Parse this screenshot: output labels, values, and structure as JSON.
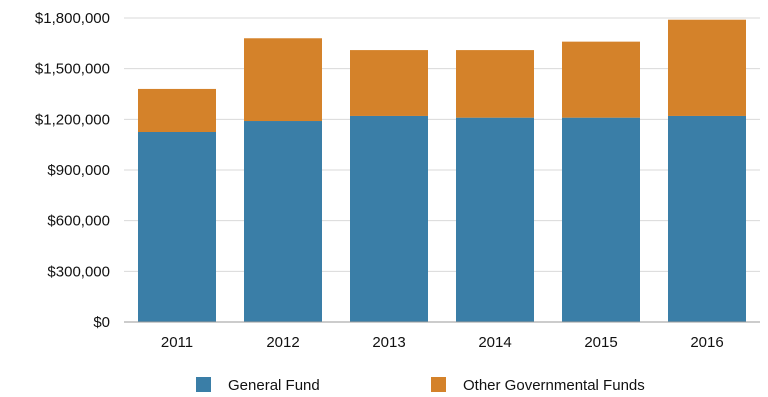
{
  "chart_data": {
    "type": "bar",
    "stacked": true,
    "categories": [
      "2011",
      "2012",
      "2013",
      "2014",
      "2015",
      "2016"
    ],
    "series": [
      {
        "name": "General Fund",
        "color": "#3a7ea7",
        "values": [
          1125000,
          1190000,
          1220000,
          1210000,
          1210000,
          1220000
        ]
      },
      {
        "name": "Other Governmental Funds",
        "color": "#d4822a",
        "values": [
          255000,
          490000,
          390000,
          400000,
          450000,
          570000
        ]
      }
    ],
    "ylim": [
      0,
      1800000
    ],
    "yticks": [
      0,
      300000,
      600000,
      900000,
      1200000,
      1500000,
      1800000
    ],
    "ytick_labels": [
      "$0",
      "$300,000",
      "$600,000",
      "$900,000",
      "$1,200,000",
      "$1,500,000",
      "$1,800,000"
    ],
    "grid": true,
    "legend": "bottom"
  }
}
